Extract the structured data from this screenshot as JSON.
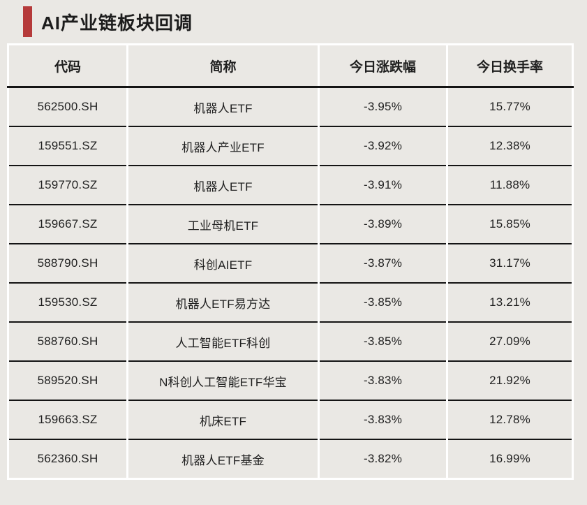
{
  "header": {
    "title": "AI产业链板块回调",
    "accent_color": "#b53a3a"
  },
  "chart_data": {
    "type": "table",
    "title": "AI产业链板块回调",
    "columns": [
      "代码",
      "简称",
      "今日涨跌幅",
      "今日换手率"
    ],
    "rows": [
      [
        "562500.SH",
        "机器人ETF",
        "-3.95%",
        "15.77%"
      ],
      [
        "159551.SZ",
        "机器人产业ETF",
        "-3.92%",
        "12.38%"
      ],
      [
        "159770.SZ",
        "机器人ETF",
        "-3.91%",
        "11.88%"
      ],
      [
        "159667.SZ",
        "工业母机ETF",
        "-3.89%",
        "15.85%"
      ],
      [
        "588790.SH",
        "科创AIETF",
        "-3.87%",
        "31.17%"
      ],
      [
        "159530.SZ",
        "机器人ETF易方达",
        "-3.85%",
        "13.21%"
      ],
      [
        "588760.SH",
        "人工智能ETF科创",
        "-3.85%",
        "27.09%"
      ],
      [
        "589520.SH",
        "N科创人工智能ETF华宝",
        "-3.83%",
        "21.92%"
      ],
      [
        "159663.SZ",
        "机床ETF",
        "-3.83%",
        "12.78%"
      ],
      [
        "562360.SH",
        "机器人ETF基金",
        "-3.82%",
        "16.99%"
      ]
    ],
    "colors": {
      "background": "#eae8e4",
      "rule_black": "#141414",
      "rule_white": "#ffffff",
      "text": "#1f1f1f",
      "accent": "#b53a3a"
    }
  }
}
